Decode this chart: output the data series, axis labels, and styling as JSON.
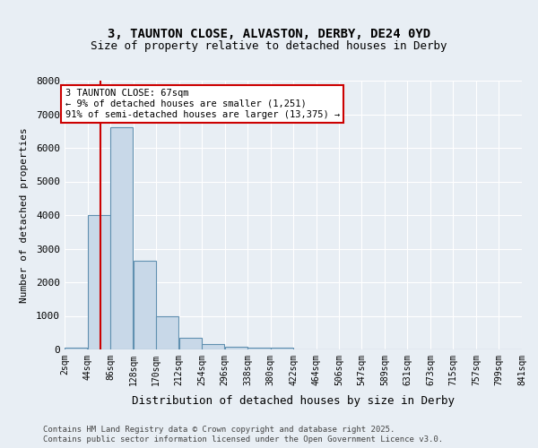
{
  "title1": "3, TAUNTON CLOSE, ALVASTON, DERBY, DE24 0YD",
  "title2": "Size of property relative to detached houses in Derby",
  "xlabel": "Distribution of detached houses by size in Derby",
  "ylabel": "Number of detached properties",
  "bin_edges": [
    2,
    44,
    86,
    128,
    170,
    212,
    254,
    296,
    338,
    380,
    422,
    464,
    506,
    547,
    589,
    631,
    673,
    715,
    757,
    799,
    841
  ],
  "bar_heights": [
    50,
    4010,
    6620,
    2650,
    1000,
    350,
    150,
    80,
    50,
    50,
    0,
    0,
    0,
    0,
    0,
    0,
    0,
    0,
    0,
    0
  ],
  "bar_color": "#c8d8e8",
  "bar_edge_color": "#6090b0",
  "red_line_x": 67,
  "annotation_title": "3 TAUNTON CLOSE: 67sqm",
  "annotation_line1": "← 9% of detached houses are smaller (1,251)",
  "annotation_line2": "91% of semi-detached houses are larger (13,375) →",
  "annotation_box_color": "#ffffff",
  "annotation_box_edge": "#cc0000",
  "red_line_color": "#cc0000",
  "ylim": [
    0,
    8000
  ],
  "yticks": [
    0,
    1000,
    2000,
    3000,
    4000,
    5000,
    6000,
    7000,
    8000
  ],
  "footer1": "Contains HM Land Registry data © Crown copyright and database right 2025.",
  "footer2": "Contains public sector information licensed under the Open Government Licence v3.0.",
  "background_color": "#e8eef4",
  "plot_background": "#e8eef4"
}
